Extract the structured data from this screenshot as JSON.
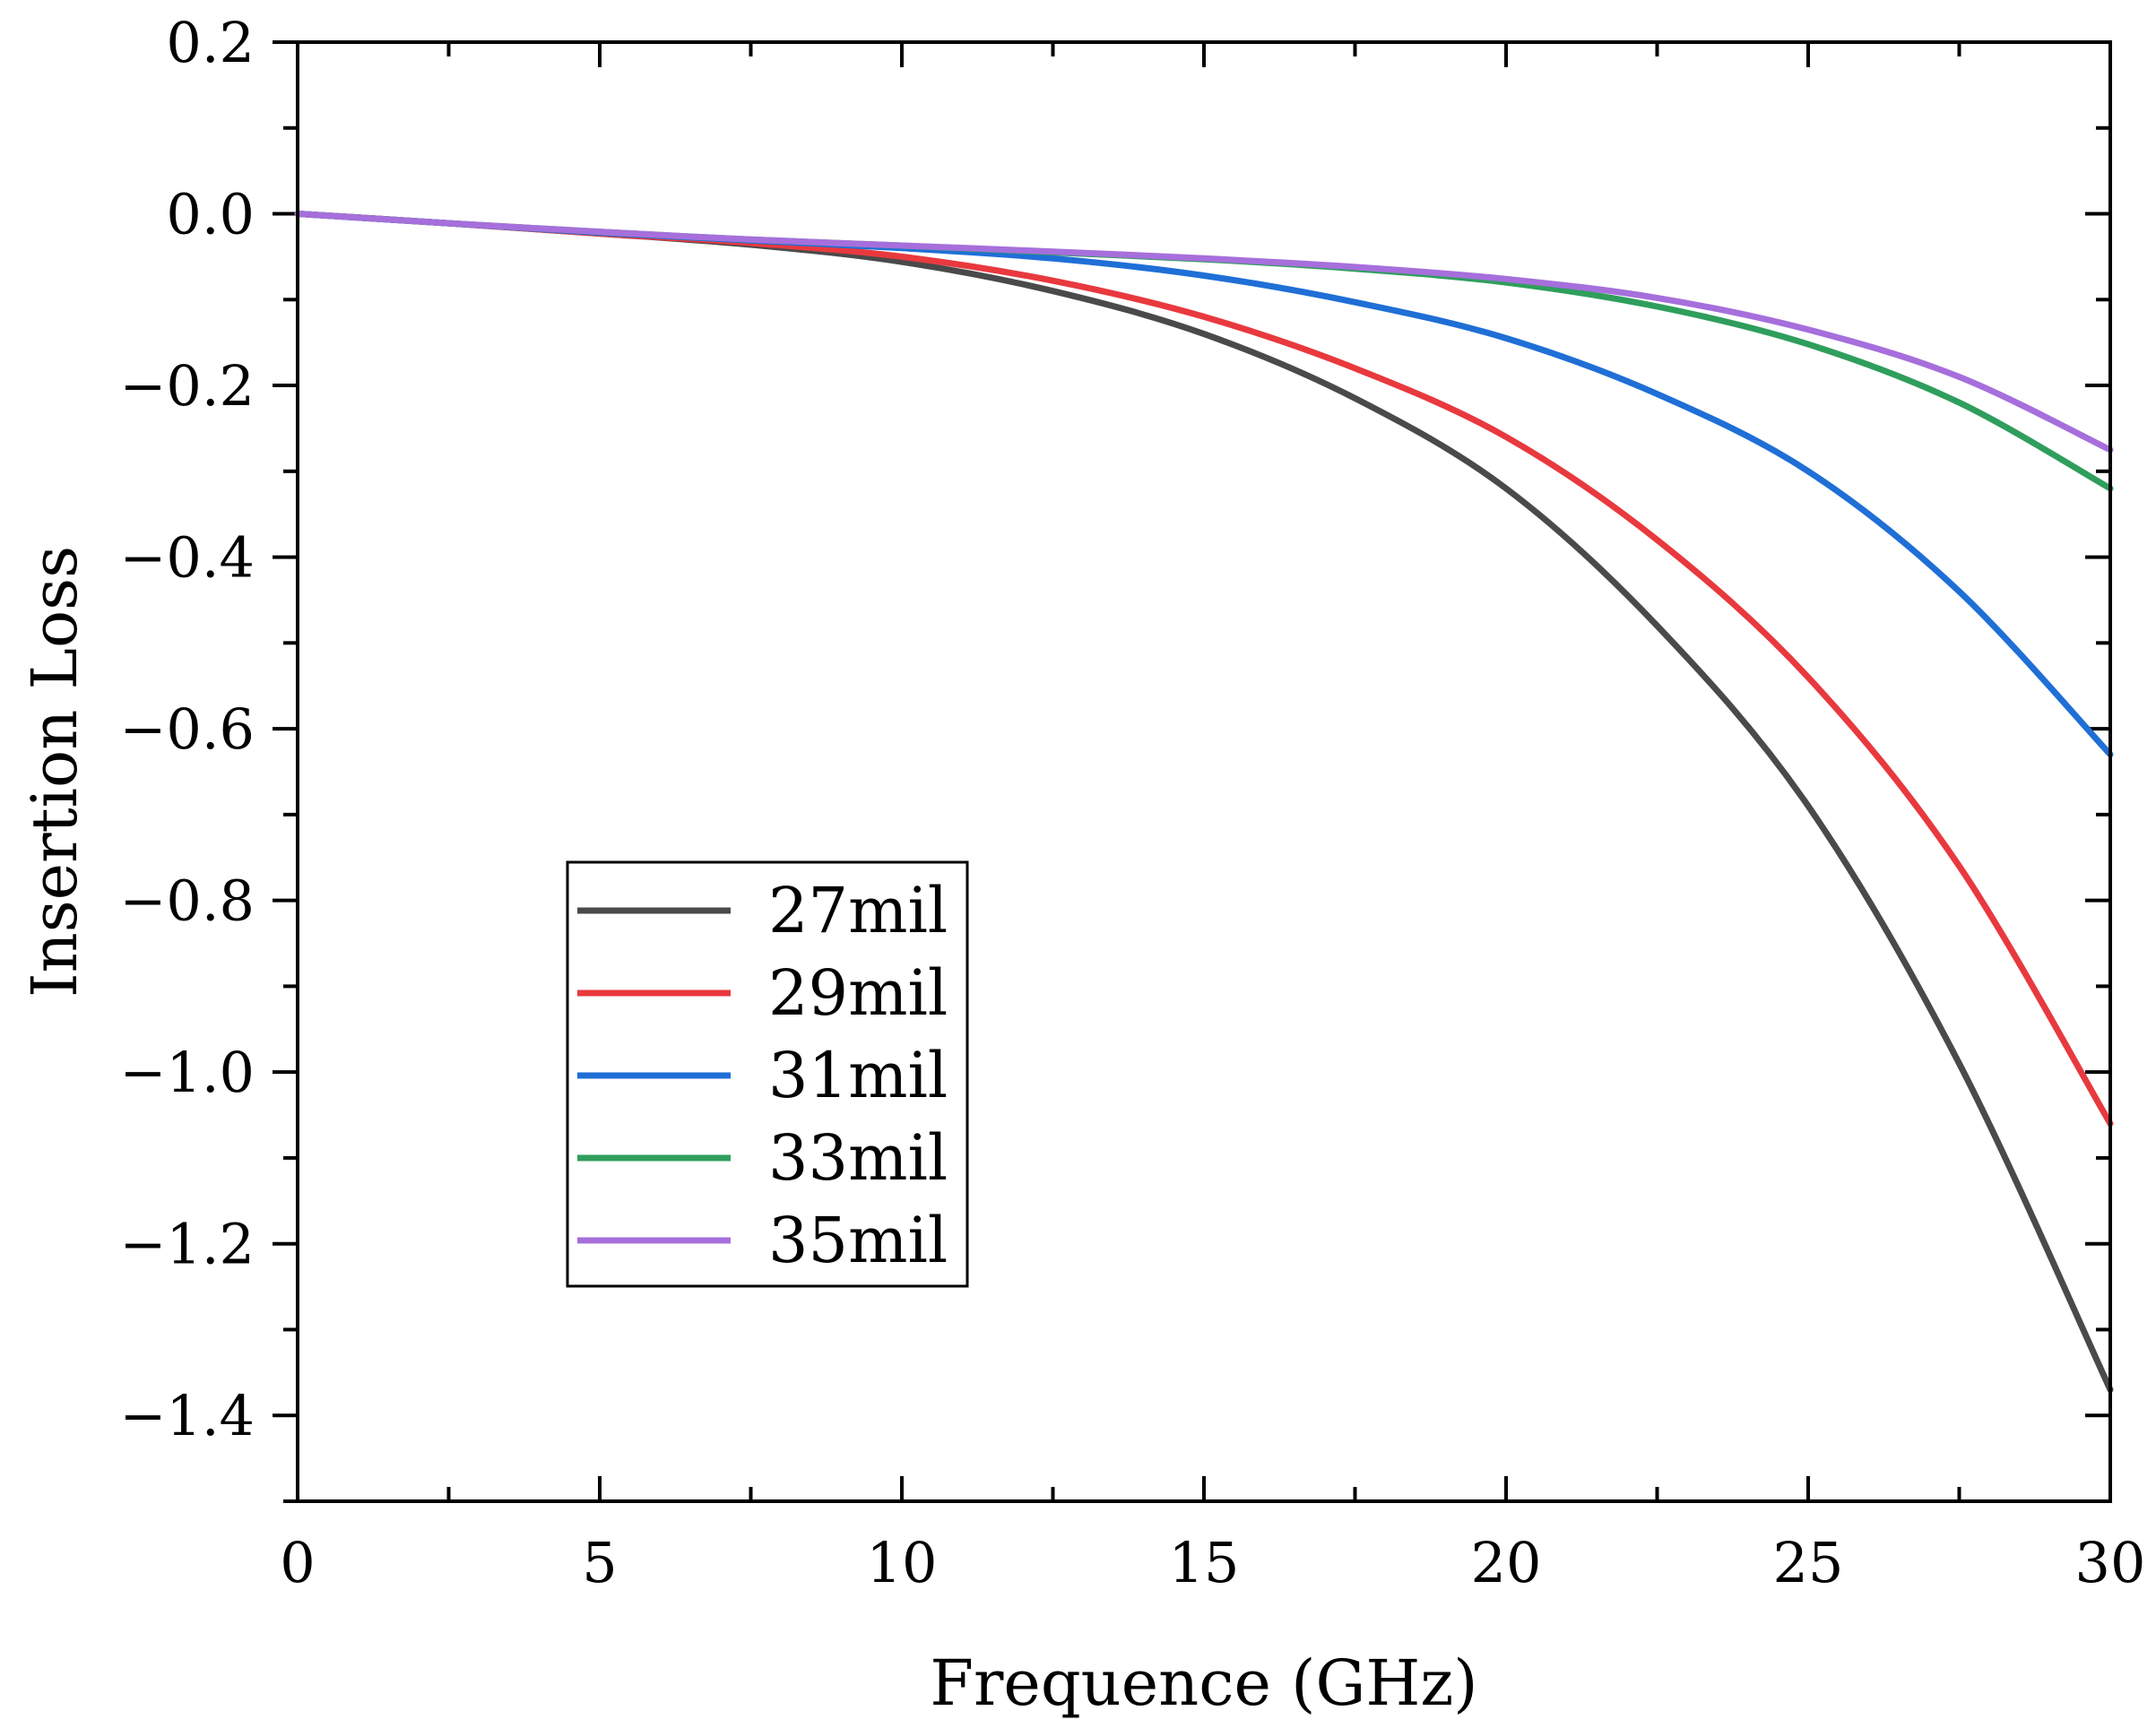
{
  "chart_data": {
    "type": "line",
    "title": "",
    "xlabel": "Frequence (GHz)",
    "ylabel": "Insertion Loss",
    "xlim": [
      0,
      30
    ],
    "ylim": [
      -1.5,
      0.2
    ],
    "x_ticks": [
      0,
      5,
      10,
      15,
      20,
      25,
      30
    ],
    "x_tick_labels": [
      "0",
      "5",
      "10",
      "15",
      "20",
      "25",
      "30"
    ],
    "y_ticks": [
      0.2,
      0.0,
      -0.2,
      -0.4,
      -0.6,
      -0.8,
      -1.0,
      -1.2,
      -1.4
    ],
    "y_tick_labels": [
      "0.2",
      "0.0",
      "−0.2",
      "−0.4",
      "−0.6",
      "−0.8",
      "−1.0",
      "−1.2",
      "−1.4"
    ],
    "grid": false,
    "legend_position": "lower-left-center",
    "x": [
      0,
      2.5,
      5,
      7.5,
      10,
      12.5,
      15,
      17.5,
      20,
      22.5,
      25,
      27.5,
      30
    ],
    "series": [
      {
        "name": "27mil",
        "color": "#4a4a4a",
        "values": [
          0,
          -0.011,
          -0.023,
          -0.036,
          -0.056,
          -0.09,
          -0.14,
          -0.215,
          -0.32,
          -0.48,
          -0.69,
          -0.99,
          -1.37
        ]
      },
      {
        "name": "29mil",
        "color": "#e8393e",
        "values": [
          0,
          -0.011,
          -0.023,
          -0.034,
          -0.05,
          -0.078,
          -0.12,
          -0.18,
          -0.26,
          -0.38,
          -0.54,
          -0.76,
          -1.06
        ]
      },
      {
        "name": "31mil",
        "color": "#1f6fd6",
        "values": [
          0,
          -0.011,
          -0.022,
          -0.031,
          -0.04,
          -0.052,
          -0.072,
          -0.103,
          -0.145,
          -0.21,
          -0.3,
          -0.44,
          -0.63
        ]
      },
      {
        "name": "33mil",
        "color": "#2f9e5c",
        "values": [
          0,
          -0.011,
          -0.021,
          -0.03,
          -0.037,
          -0.045,
          -0.053,
          -0.064,
          -0.08,
          -0.108,
          -0.152,
          -0.22,
          -0.32
        ]
      },
      {
        "name": "35mil",
        "color": "#a66fdc",
        "values": [
          0,
          -0.011,
          -0.021,
          -0.03,
          -0.037,
          -0.044,
          -0.052,
          -0.062,
          -0.076,
          -0.098,
          -0.135,
          -0.19,
          -0.275
        ]
      }
    ]
  }
}
